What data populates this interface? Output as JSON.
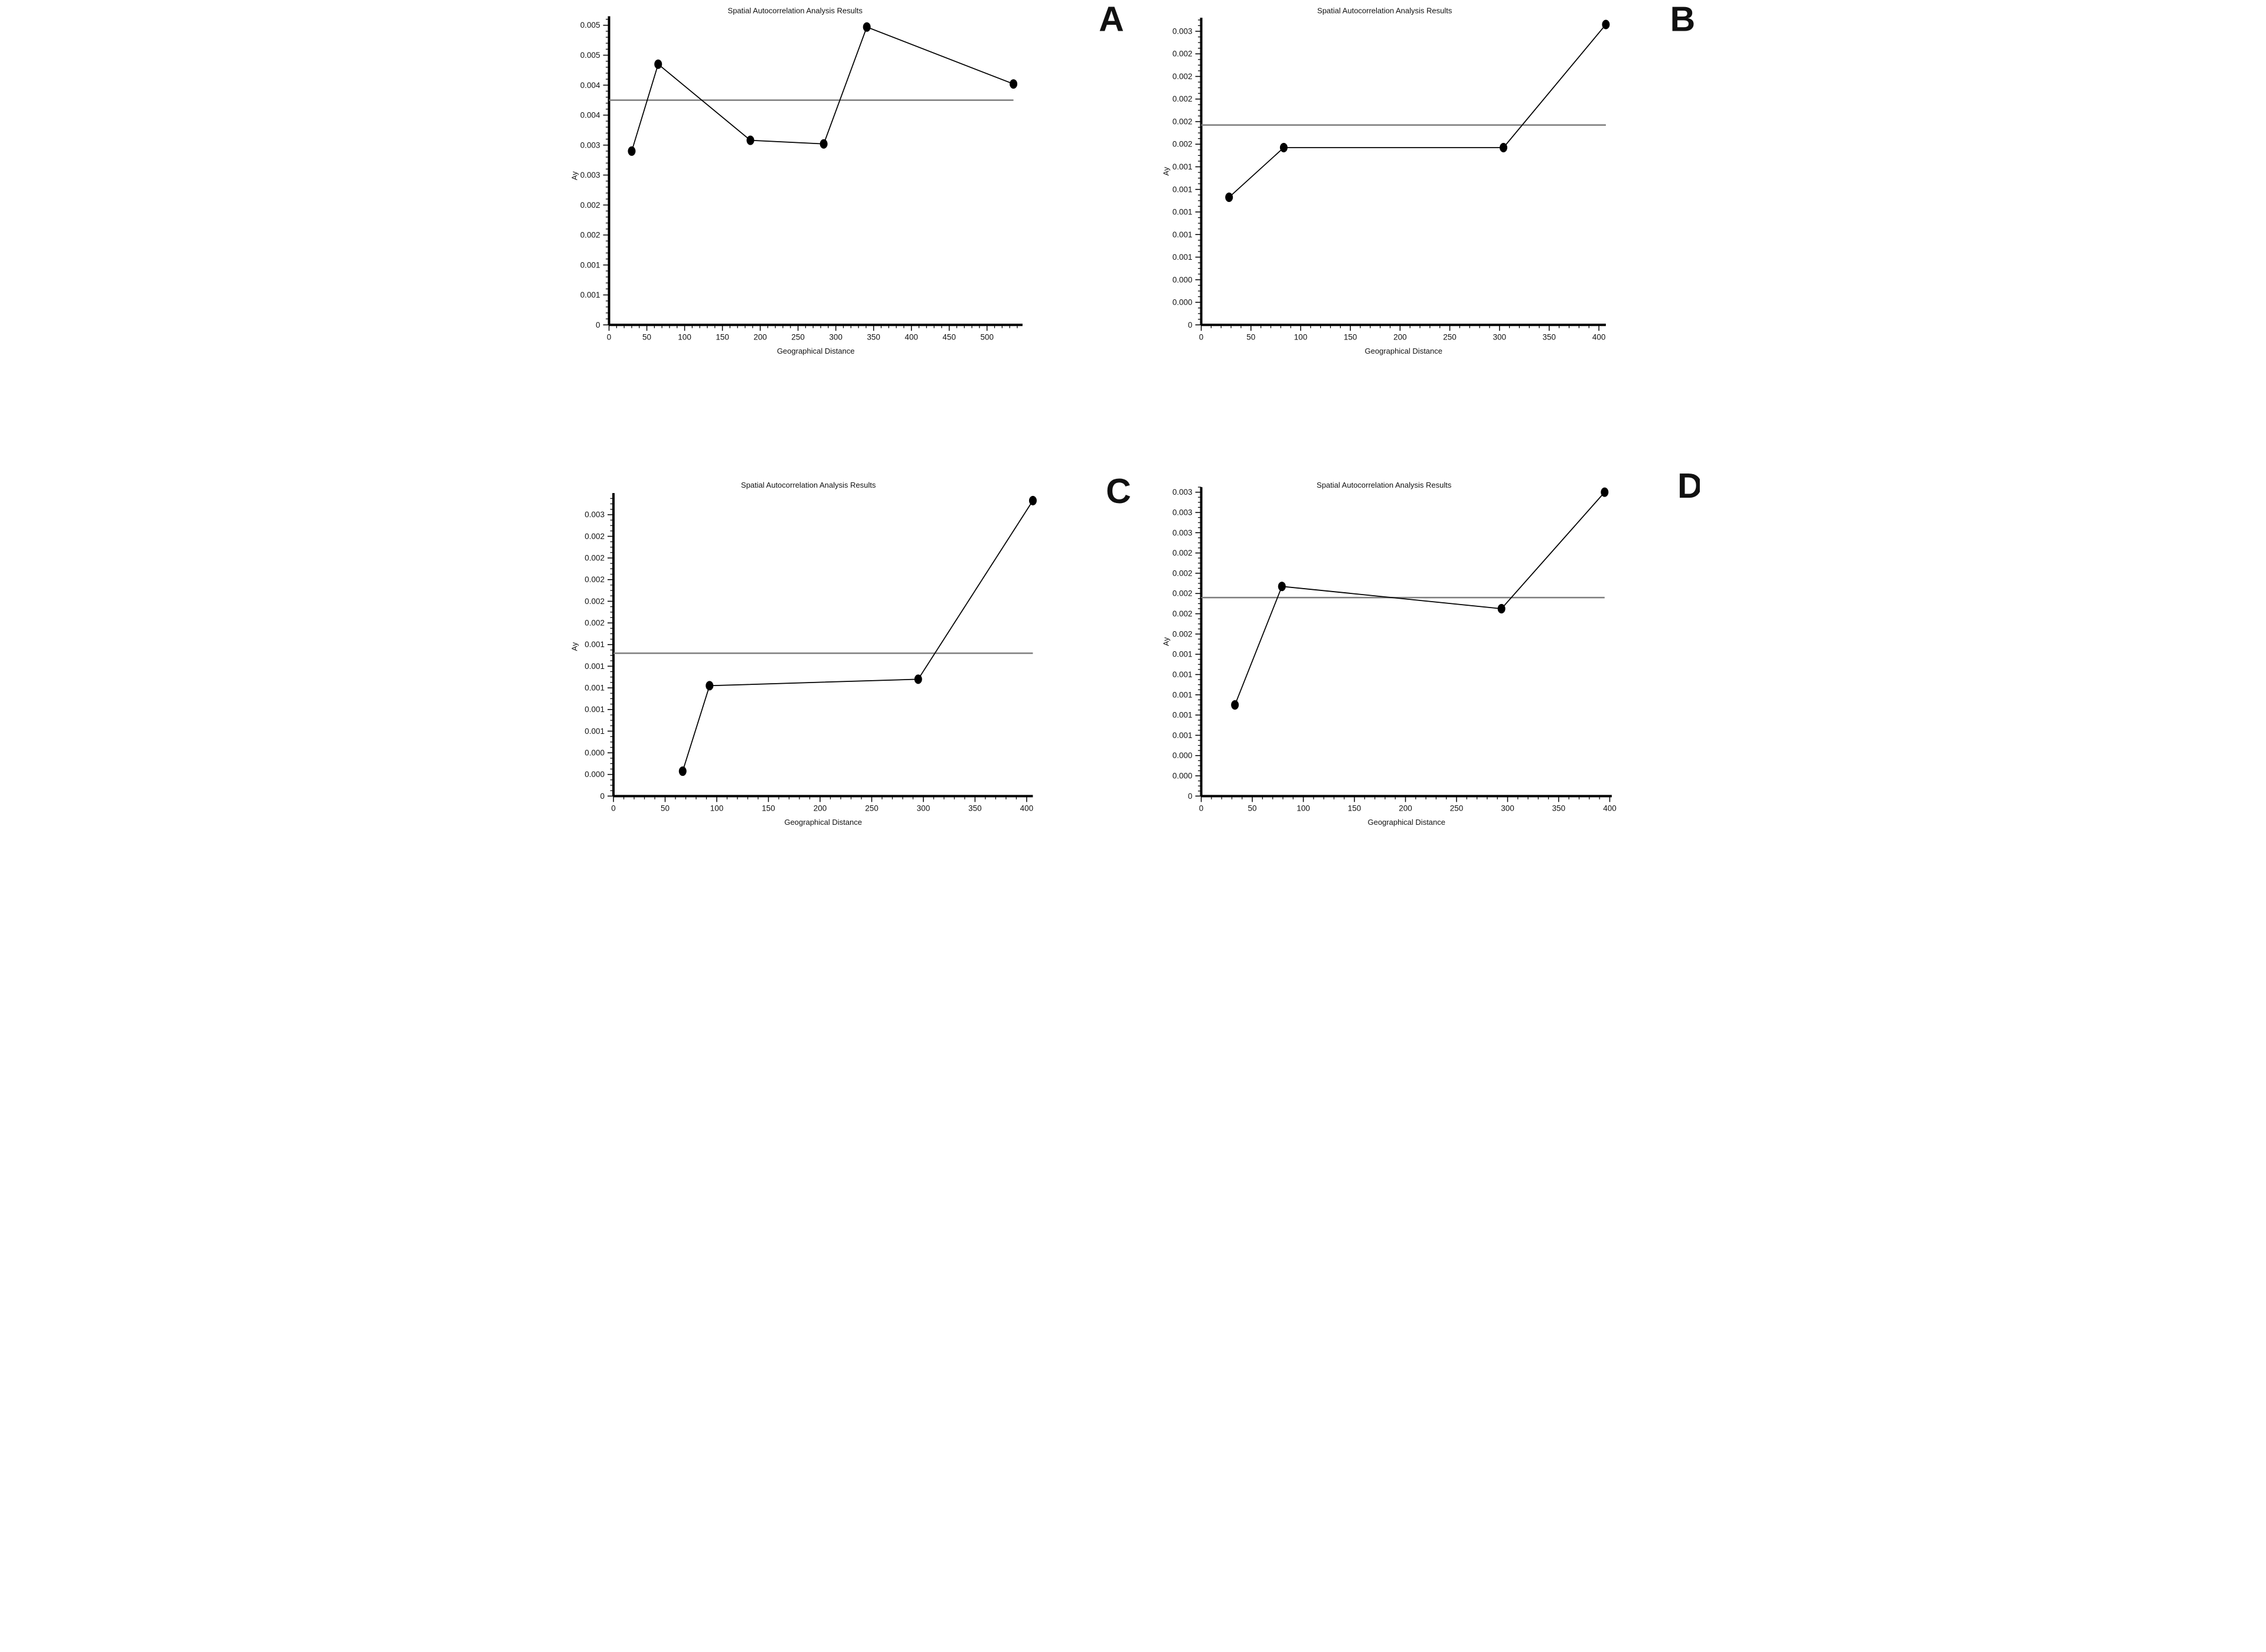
{
  "figure": {
    "background": "#ffffff",
    "letter_color": "#1b1b6e",
    "axis_color": "#000000",
    "text_color": "#111111"
  },
  "chart_data": [
    {
      "type": "line",
      "panel_label": "A",
      "title": "Spatial Autocorrelation Analysis Results",
      "xlabel": "Geographical Distance",
      "ylabel": "Ay",
      "x": [
        30,
        65,
        187,
        284,
        341,
        535
      ],
      "y": [
        0.0029,
        0.00435,
        0.00308,
        0.00302,
        0.00497,
        0.00402
      ],
      "reference_line_y": 0.00375,
      "xlim": [
        0,
        547
      ],
      "ylim": [
        0,
        0.00515
      ],
      "x_major_ticks": [
        0,
        50,
        100,
        150,
        200,
        250,
        300,
        350,
        400,
        450,
        500
      ],
      "x_minor_step": 10,
      "y_major_step": 0.0005,
      "y_minor_step": 0.0001,
      "y_tick_labels": [
        "0",
        "0.001",
        "0.001",
        "0.002",
        "0.002",
        "0.003",
        "0.003",
        "0.004",
        "0.004",
        "0.005",
        "0.005"
      ],
      "line_color": "#000000",
      "marker": "filled-ellipse",
      "marker_color": "#000000",
      "ref_line_color": "#7d7d7d",
      "grid": false,
      "legend": null
    },
    {
      "type": "line",
      "panel_label": "B",
      "title": "Spatial Autocorrelation Analysis Results",
      "xlabel": "Geographical Distance",
      "ylabel": "Ay",
      "x": [
        28,
        83,
        304,
        407
      ],
      "y": [
        0.00113,
        0.00157,
        0.00157,
        0.00266
      ],
      "reference_line_y": 0.00177,
      "xlim": [
        0,
        407
      ],
      "ylim": [
        0,
        0.00272
      ],
      "x_major_ticks": [
        0,
        50,
        100,
        150,
        200,
        250,
        300,
        350,
        400
      ],
      "x_minor_step": 10,
      "y_major_step": 0.0002,
      "y_minor_step": 5e-05,
      "y_tick_labels": [
        "0",
        "0.000",
        "0.000",
        "0.001",
        "0.001",
        "0.001",
        "0.001",
        "0.001",
        "0.002",
        "0.002",
        "0.002",
        "0.002",
        "0.002",
        "0.003"
      ],
      "line_color": "#000000",
      "marker": "filled-ellipse",
      "marker_color": "#000000",
      "ref_line_color": "#7d7d7d",
      "grid": false,
      "legend": null
    },
    {
      "type": "line",
      "panel_label": "C",
      "title": "Spatial Autocorrelation Analysis Results",
      "xlabel": "Geographical Distance",
      "ylabel": "Ay",
      "x": [
        67,
        93,
        295,
        406
      ],
      "y": [
        0.00023,
        0.00102,
        0.00108,
        0.00273
      ],
      "reference_line_y": 0.00132,
      "xlim": [
        0,
        406
      ],
      "ylim": [
        0,
        0.0028
      ],
      "x_major_ticks": [
        0,
        50,
        100,
        150,
        200,
        250,
        300,
        350,
        400
      ],
      "x_minor_step": 10,
      "y_major_step": 0.0002,
      "y_minor_step": 5e-05,
      "y_tick_labels": [
        "0",
        "0.000",
        "0.000",
        "0.001",
        "0.001",
        "0.001",
        "0.001",
        "0.001",
        "0.002",
        "0.002",
        "0.002",
        "0.002",
        "0.002",
        "0.003"
      ],
      "line_color": "#000000",
      "marker": "filled-ellipse",
      "marker_color": "#000000",
      "ref_line_color": "#7d7d7d",
      "grid": false,
      "legend": null
    },
    {
      "type": "line",
      "panel_label": "D",
      "title": "Spatial Autocorrelation Analysis Results",
      "xlabel": "Geographical Distance",
      "ylabel": "Ay",
      "x": [
        33,
        79,
        294,
        395
      ],
      "y": [
        0.0009,
        0.00207,
        0.00185,
        0.003
      ],
      "reference_line_y": 0.00196,
      "xlim": [
        0,
        402
      ],
      "ylim": [
        0,
        0.00305
      ],
      "x_major_ticks": [
        0,
        50,
        100,
        150,
        200,
        250,
        300,
        350,
        400
      ],
      "x_minor_step": 10,
      "y_major_step": 0.0002,
      "y_minor_step": 5e-05,
      "y_tick_labels": [
        "0",
        "0.000",
        "0.000",
        "0.001",
        "0.001",
        "0.001",
        "0.001",
        "0.001",
        "0.002",
        "0.002",
        "0.002",
        "0.002",
        "0.002",
        "0.003",
        "0.003",
        "0.003"
      ],
      "line_color": "#000000",
      "marker": "filled-ellipse",
      "marker_color": "#000000",
      "ref_line_color": "#7d7d7d",
      "grid": false,
      "legend": null
    }
  ]
}
